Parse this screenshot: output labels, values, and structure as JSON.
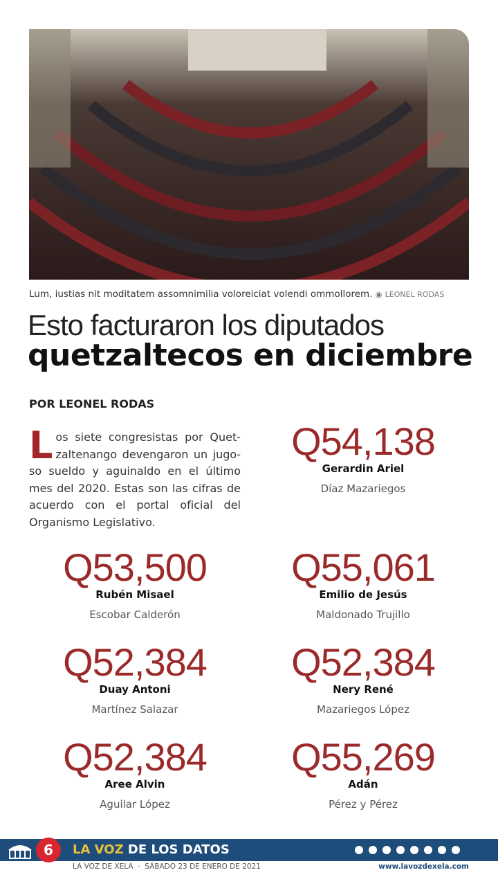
{
  "photo": {
    "caption": "Lum, iustias nit moditatem assomnimilia voloreiciat volendi ommollorem.",
    "credit": "LEONEL RODAS"
  },
  "header": {
    "title_light": "Esto facturaron los diputados",
    "title_bold": "quetzaltecos en diciembre",
    "byline": "POR LEONEL RODAS"
  },
  "intro": {
    "drop_cap": "L",
    "text": "os siete congresistas por Quet­zaltenango devengaron un jugo­so sueldo y aguinaldo en el último mes del 2020. Estas son las cifras de acuerdo con el portal oficial del Organismo Legislativo."
  },
  "entries": [
    {
      "amount": "Q54,138",
      "first_name": "Gerardin Ariel",
      "last_name": "Díaz Mazariegos"
    },
    {
      "amount": "Q53,500",
      "first_name": "Rubén Misael",
      "last_name": "Escobar Calderón"
    },
    {
      "amount": "Q55,061",
      "first_name": "Emilio de Jesús",
      "last_name": "Maldonado Trujillo"
    },
    {
      "amount": "Q52,384",
      "first_name": "Duay Antoni",
      "last_name": "Martínez Salazar"
    },
    {
      "amount": "Q52,384",
      "first_name": "Nery René",
      "last_name": "Mazariegos López"
    },
    {
      "amount": "Q52,384",
      "first_name": "Aree Alvin",
      "last_name": "Aguilar López"
    },
    {
      "amount": "Q55,269",
      "first_name": "Adán",
      "last_name": "Pérez y Pérez"
    }
  ],
  "footer": {
    "page": "6",
    "section_a": "LA VOZ",
    "section_b": "DE LOS DATOS",
    "edition": "LA VOZ DE XELA  ·  SÁBADO 23 DE ENERO DE 2021",
    "website": "www.lavozdexela.com"
  }
}
